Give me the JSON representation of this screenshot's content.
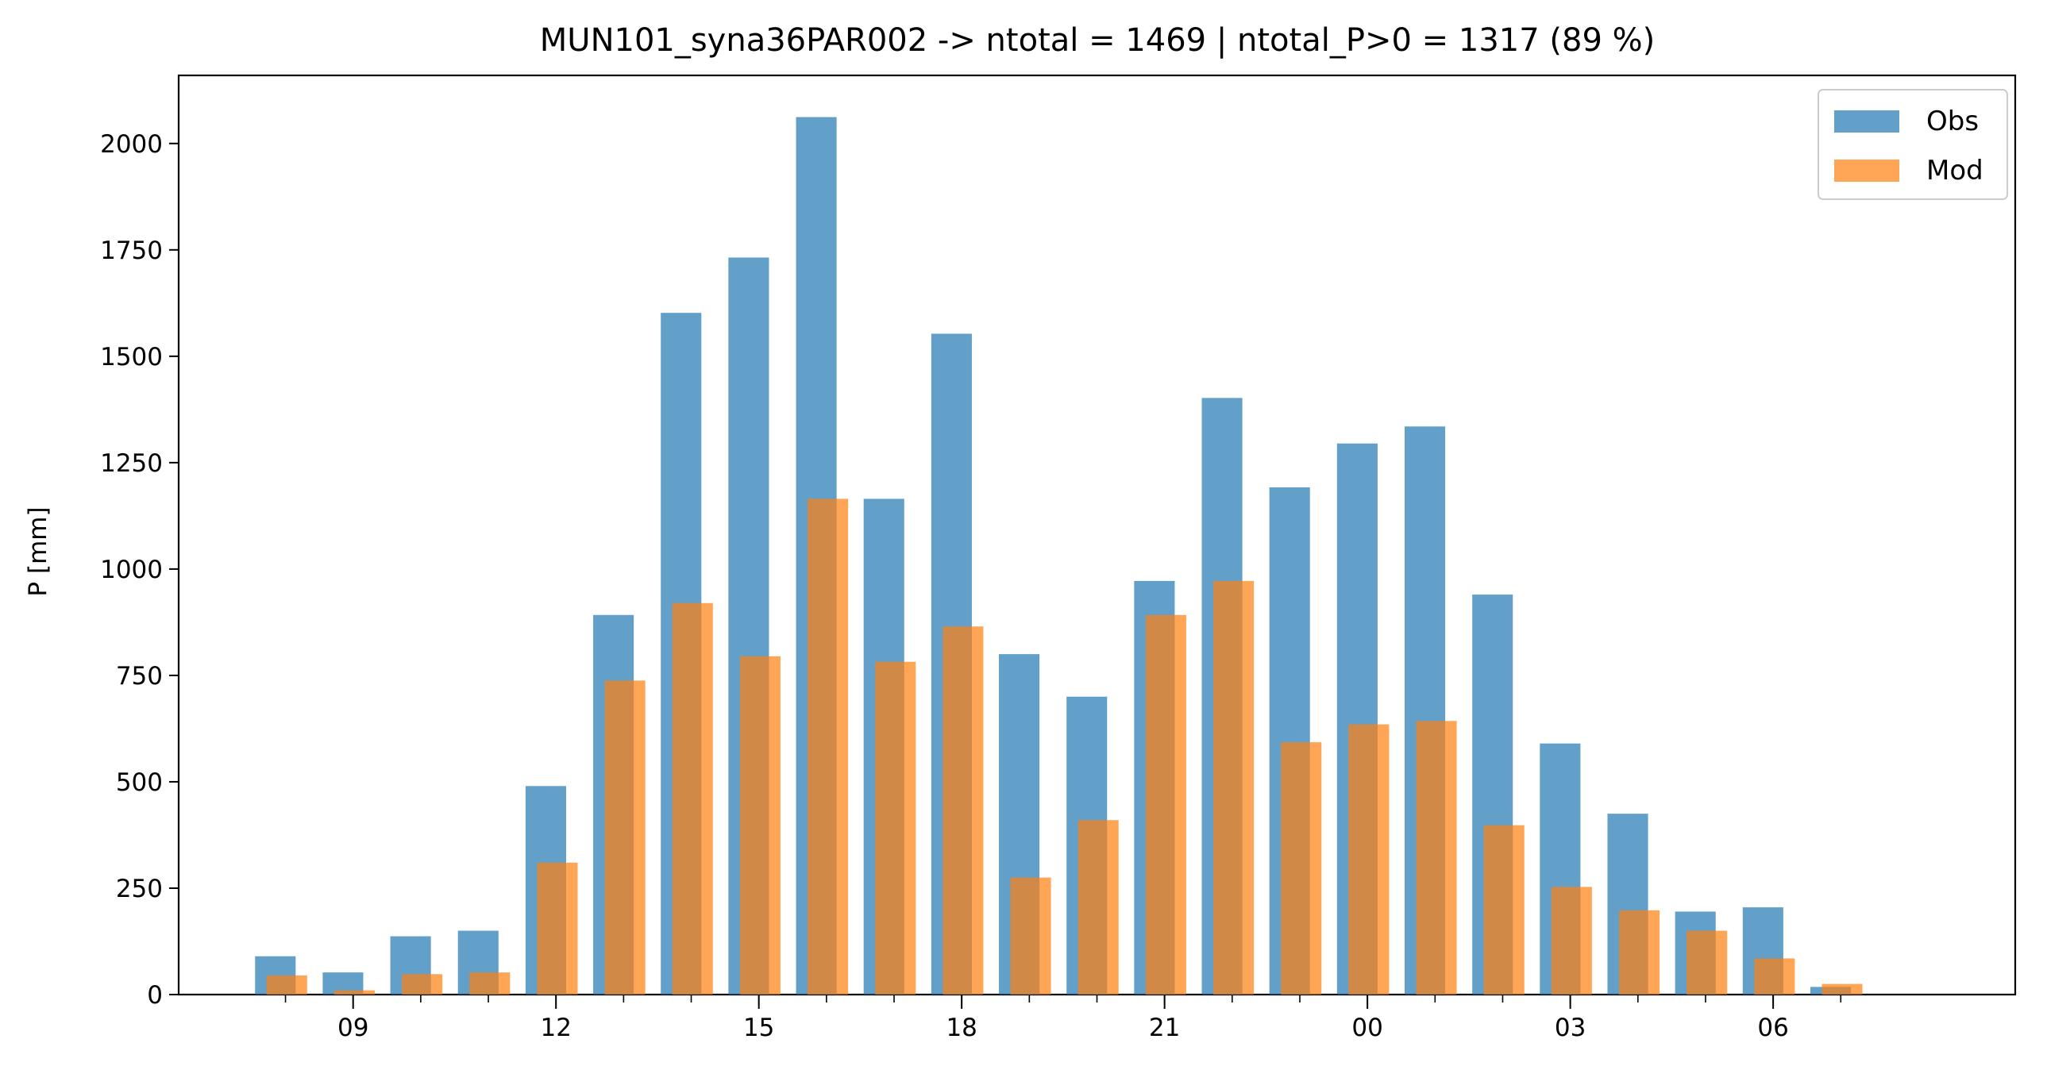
{
  "chart_data": {
    "type": "bar",
    "title": "MUN101_syna36PAR002 -> ntotal = 1469 | ntotal_P>0 = 1317 (89 %)",
    "xlabel": "",
    "ylabel": "P [mm]",
    "ylim": [
      0,
      2160
    ],
    "yticks": [
      0,
      250,
      500,
      750,
      1000,
      1250,
      1500,
      1750,
      2000
    ],
    "categories": [
      "08",
      "09",
      "10",
      "11",
      "12",
      "13",
      "14",
      "15",
      "16",
      "17",
      "18",
      "19",
      "20",
      "21",
      "22",
      "23",
      "00",
      "01",
      "02",
      "03",
      "04",
      "05",
      "06",
      "07"
    ],
    "xtick_labels": [
      {
        "label": "09",
        "category": "09"
      },
      {
        "label": "12",
        "category": "12"
      },
      {
        "label": "15",
        "category": "15"
      },
      {
        "label": "18",
        "category": "18"
      },
      {
        "label": "21",
        "category": "21"
      },
      {
        "label": "00",
        "category": "00"
      },
      {
        "label": "03",
        "category": "03"
      },
      {
        "label": "06",
        "category": "06"
      }
    ],
    "series": [
      {
        "name": "Obs",
        "color": "#1f77b4",
        "opacity": 0.7,
        "values": [
          90,
          52,
          137,
          150,
          490,
          892,
          1602,
          1732,
          2062,
          1165,
          1553,
          800,
          700,
          972,
          1402,
          1192,
          1295,
          1335,
          940,
          590,
          425,
          195,
          205,
          18
        ]
      },
      {
        "name": "Mod",
        "color": "#ff7f0e",
        "opacity": 0.7,
        "values": [
          45,
          10,
          48,
          52,
          310,
          738,
          920,
          795,
          1165,
          782,
          865,
          275,
          410,
          892,
          972,
          593,
          635,
          643,
          398,
          253,
          198,
          150,
          85,
          25
        ]
      }
    ],
    "legend_position": "top-right",
    "grid": false
  }
}
